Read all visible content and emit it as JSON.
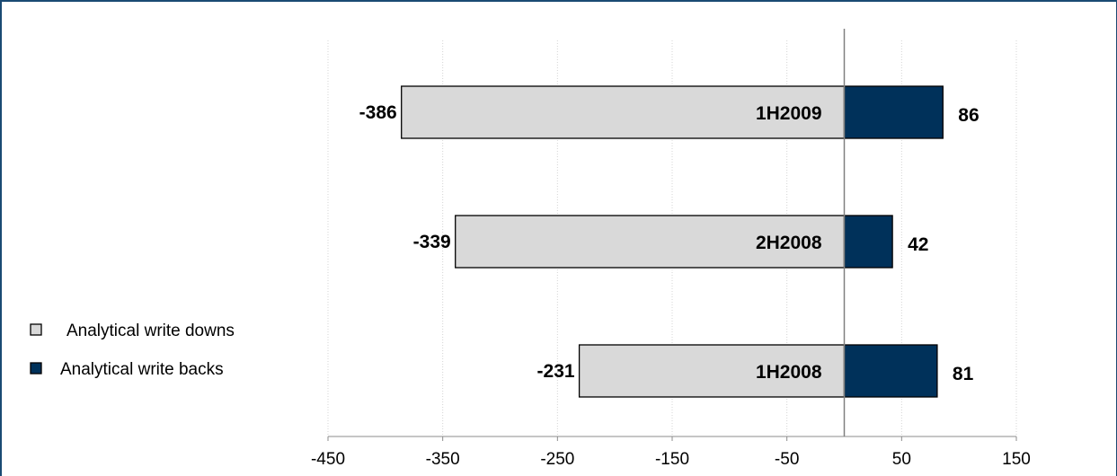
{
  "chart_data": {
    "type": "bar",
    "orientation": "horizontal",
    "categories": [
      "1H2009",
      "2H2008",
      "1H2008"
    ],
    "series": [
      {
        "name": "Analytical write downs",
        "values": [
          -386,
          -339,
          -231
        ],
        "color": "#d9d9d9"
      },
      {
        "name": "Analytical write backs",
        "values": [
          86,
          42,
          81
        ],
        "color": "#00315a"
      }
    ],
    "xlim": [
      -450,
      150
    ],
    "xticks": [
      -450,
      -350,
      -250,
      -150,
      -50,
      50,
      150
    ],
    "grid": true,
    "legend": "left",
    "title": "",
    "xlabel": "",
    "ylabel": ""
  }
}
